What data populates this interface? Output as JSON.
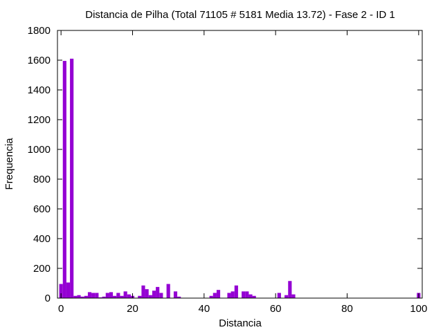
{
  "chart_data": {
    "type": "bar",
    "title": "Distancia de Pilha (Total 71105 # 5181 Media 13.72) - Fase  2 - ID 1",
    "xlabel": "Distancia",
    "ylabel": "Frequencia",
    "xlim": [
      -1,
      101
    ],
    "ylim": [
      0,
      1800
    ],
    "xticks": [
      0,
      20,
      40,
      60,
      80,
      100
    ],
    "yticks": [
      0,
      200,
      400,
      600,
      800,
      1000,
      1200,
      1400,
      1600,
      1800
    ],
    "grid": false,
    "legend": "none",
    "bar_color": "#9400d3",
    "x": [
      0,
      1,
      2,
      3,
      4,
      5,
      6,
      7,
      8,
      9,
      10,
      11,
      12,
      13,
      14,
      15,
      16,
      17,
      18,
      19,
      20,
      21,
      22,
      23,
      24,
      25,
      26,
      27,
      28,
      29,
      30,
      31,
      32,
      33,
      34,
      35,
      36,
      37,
      38,
      39,
      40,
      41,
      42,
      43,
      44,
      45,
      46,
      47,
      48,
      49,
      50,
      51,
      52,
      53,
      54,
      55,
      56,
      57,
      58,
      59,
      60,
      61,
      62,
      63,
      64,
      65,
      66,
      67,
      68,
      69,
      70,
      71,
      72,
      73,
      74,
      75,
      76,
      77,
      78,
      79,
      80,
      81,
      82,
      83,
      84,
      85,
      86,
      87,
      88,
      89,
      90,
      91,
      92,
      93,
      94,
      95,
      96,
      97,
      98,
      99,
      100
    ],
    "values": [
      95,
      1595,
      105,
      1610,
      15,
      20,
      10,
      15,
      40,
      35,
      35,
      5,
      10,
      35,
      40,
      15,
      35,
      15,
      45,
      25,
      15,
      0,
      15,
      85,
      60,
      20,
      50,
      75,
      35,
      0,
      95,
      0,
      45,
      10,
      0,
      0,
      0,
      0,
      0,
      0,
      0,
      0,
      15,
      35,
      55,
      0,
      0,
      35,
      45,
      85,
      0,
      45,
      45,
      25,
      15,
      0,
      0,
      0,
      0,
      0,
      0,
      35,
      0,
      20,
      115,
      25,
      0,
      0,
      0,
      0,
      0,
      0,
      0,
      0,
      0,
      0,
      0,
      0,
      0,
      0,
      0,
      0,
      0,
      0,
      0,
      0,
      0,
      0,
      0,
      0,
      0,
      0,
      0,
      0,
      0,
      0,
      0,
      0,
      0,
      0,
      35
    ]
  }
}
